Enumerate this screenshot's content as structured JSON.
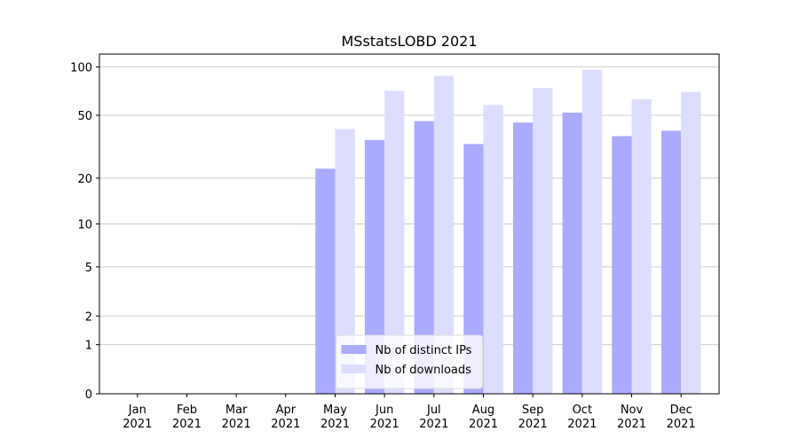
{
  "chart_data": {
    "type": "bar",
    "title": "MSstatsLOBD 2021",
    "categories": [
      "Jan\n2021",
      "Feb\n2021",
      "Mar\n2021",
      "Apr\n2021",
      "May\n2021",
      "Jun\n2021",
      "Jul\n2021",
      "Aug\n2021",
      "Sep\n2021",
      "Oct\n2021",
      "Nov\n2021",
      "Dec\n2021"
    ],
    "series": [
      {
        "name": "Nb of distinct IPs",
        "color": "#aaaaff",
        "values": [
          0,
          0,
          0,
          0,
          23,
          35,
          46,
          33,
          45,
          52,
          37,
          40
        ]
      },
      {
        "name": "Nb of downloads",
        "color": "#ddddff",
        "values": [
          0,
          0,
          0,
          0,
          41,
          71,
          88,
          58,
          74,
          96,
          63,
          70
        ]
      }
    ],
    "yscale": "log1p",
    "ylim": [
      0,
      120
    ],
    "yticks": [
      0,
      1,
      2,
      5,
      10,
      20,
      50,
      100
    ],
    "grid": true,
    "legend": "lower center"
  }
}
